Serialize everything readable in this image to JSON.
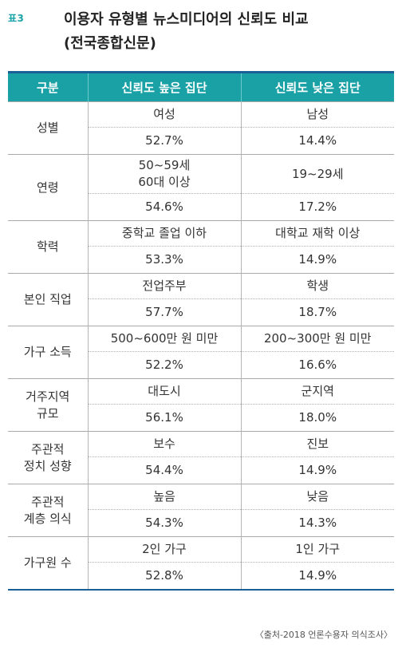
{
  "header": {
    "label": "표3",
    "title_line1": "이용자 유형별 뉴스미디어의 신뢰도 비교",
    "title_line2": "(전국종합신문)"
  },
  "table": {
    "columns": [
      "구분",
      "신뢰도 높은 집단",
      "신뢰도 낮은 집단"
    ],
    "rows": [
      {
        "category": [
          "성별"
        ],
        "high": [
          "여성"
        ],
        "low": [
          "남성"
        ],
        "high_pct": "52.7%",
        "low_pct": "14.4%"
      },
      {
        "category": [
          "연령"
        ],
        "high": [
          "50~59세",
          "60대 이상"
        ],
        "low": [
          "19~29세"
        ],
        "high_pct": "54.6%",
        "low_pct": "17.2%"
      },
      {
        "category": [
          "학력"
        ],
        "high": [
          "중학교 졸업 이하"
        ],
        "low": [
          "대학교 재학 이상"
        ],
        "high_pct": "53.3%",
        "low_pct": "14.9%"
      },
      {
        "category": [
          "본인 직업"
        ],
        "high": [
          "전업주부"
        ],
        "low": [
          "학생"
        ],
        "high_pct": "57.7%",
        "low_pct": "18.7%"
      },
      {
        "category": [
          "가구 소득"
        ],
        "high": [
          "500~600만 원 미만"
        ],
        "low": [
          "200~300만 원 미만"
        ],
        "high_pct": "52.2%",
        "low_pct": "16.6%"
      },
      {
        "category": [
          "거주지역",
          "규모"
        ],
        "high": [
          "대도시"
        ],
        "low": [
          "군지역"
        ],
        "high_pct": "56.1%",
        "low_pct": "18.0%"
      },
      {
        "category": [
          "주관적",
          "정치 성향"
        ],
        "high": [
          "보수"
        ],
        "low": [
          "진보"
        ],
        "high_pct": "54.4%",
        "low_pct": "14.9%"
      },
      {
        "category": [
          "주관적",
          "계층 의식"
        ],
        "high": [
          "높음"
        ],
        "low": [
          "낮음"
        ],
        "high_pct": "54.3%",
        "low_pct": "14.3%"
      },
      {
        "category": [
          "가구원 수"
        ],
        "high": [
          "2인 가구"
        ],
        "low": [
          "1인 가구"
        ],
        "high_pct": "52.8%",
        "low_pct": "14.9%"
      }
    ]
  },
  "source": "〈출처-2018 언론수용자 의식조사〉"
}
